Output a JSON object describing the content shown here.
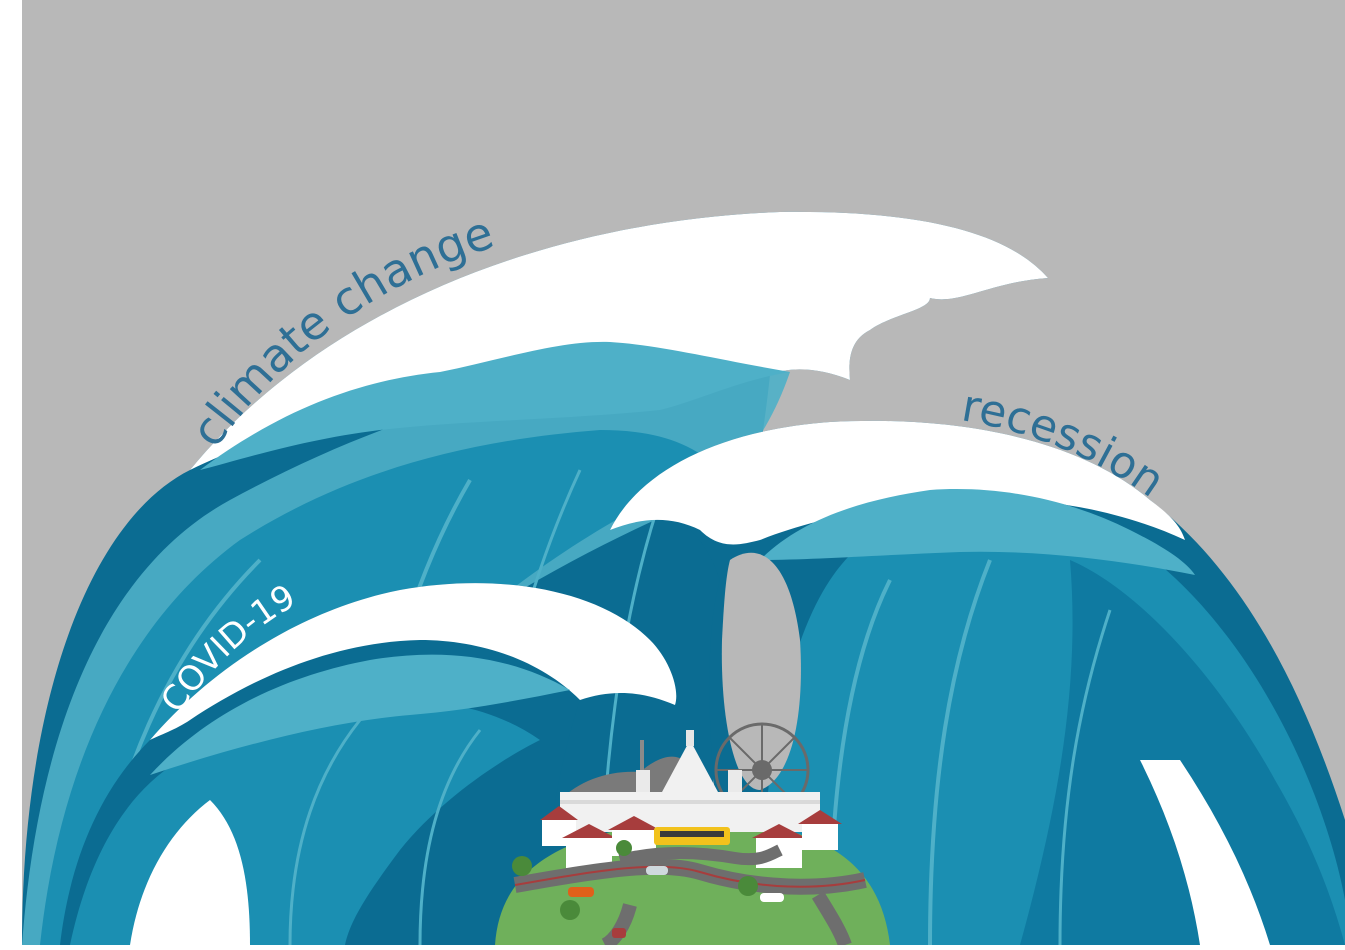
{
  "labels": {
    "climate": "climate change",
    "recession": "recession",
    "covid": "COVID-19"
  },
  "colors": {
    "background": "#b8b8b8",
    "wave_light": "#4eb0c8",
    "wave_mid": "#1b8fb2",
    "wave_dark": "#0b6c92",
    "foam": "#ffffff",
    "label_blue": "#2e6f95",
    "grass": "#6fb05b",
    "road": "#6e6e6e",
    "roof": "#a73d3d",
    "bus": "#f2c21c",
    "ferris_wheel": "#6a6a6a",
    "hill": "#7a7a7a"
  }
}
